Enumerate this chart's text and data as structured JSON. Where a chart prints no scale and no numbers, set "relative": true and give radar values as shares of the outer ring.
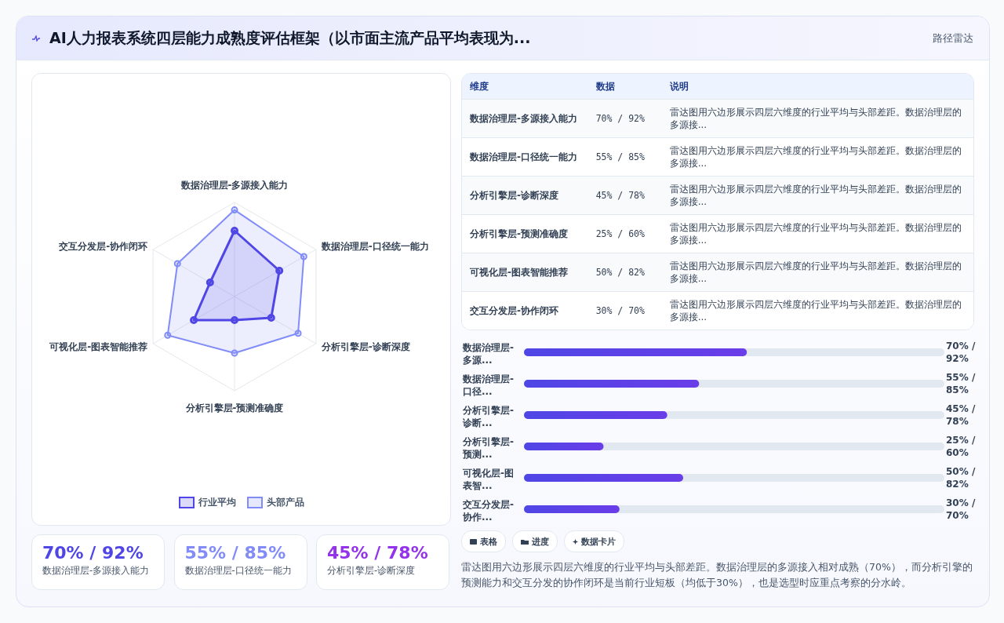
{
  "chart_data": [
    {
      "type": "other",
      "title": "AI人力报表系统四层能力成熟度评估框架（以市面主流产品平均表现为...",
      "subtitle": "路径雷达"
    },
    {
      "type": "radar",
      "relative": true,
      "categories": [
        "数据治理层-多源接入能力",
        "数据治理层-口径统一能力",
        "分析引擎层-诊断深度",
        "分析引擎层-预测准确度",
        "可视化层-图表智能推荐",
        "交互分发层-协作闭环"
      ],
      "series": [
        {
          "name": "行业平均",
          "color": "#4f46e5",
          "values": [
            0.7,
            0.55,
            0.45,
            0.25,
            0.5,
            0.3
          ]
        },
        {
          "name": "头部产品",
          "color": "#818cf8",
          "values": [
            0.92,
            0.85,
            0.78,
            0.6,
            0.82,
            0.7
          ]
        }
      ],
      "grid": true,
      "legend": "bottom",
      "marker": "circle"
    },
    {
      "type": "other",
      "annotations": [
        "维度",
        "数据",
        "说明",
        "数据治理层-多源接入能力",
        "70% / 92%",
        "雷达图用六边形展示四层六维度的行业平均与头部差距。数据治理层的多源接...",
        "数据治理层-口径统一能力",
        "55% / 85%",
        "雷达图用六边形展示四层六维度的行业平均与头部差距。数据治理层的多源接...",
        "分析引擎层-诊断深度",
        "45% / 78%",
        "雷达图用六边形展示四层六维度的行业平均与头部差距。数据治理层的多源接...",
        "分析引擎层-预测准确度",
        "25% / 60%",
        "雷达图用六边形展示四层六维度的行业平均与头部差距。数据治理层的多源接...",
        "可视化层-图表智能推荐",
        "50% / 82%",
        "雷达图用六边形展示四层六维度的行业平均与头部差距。数据治理层的多源接...",
        "交互分发层-协作闭环",
        "30% / 70%",
        "雷达图用六边形展示四层六维度的行业平均与头部差距。数据治理层的多源接..."
      ]
    },
    {
      "type": "bar",
      "orientation": "horizontal",
      "categories": [
        "数据治理层-多源...",
        "数据治理层-口径...",
        "分析引擎层-诊断...",
        "分析引擎层-预测...",
        "可视化层-图表智...",
        "交互分发层-协作..."
      ],
      "values": [
        70,
        55,
        45,
        25,
        50,
        30
      ],
      "color": "#6a3de8",
      "value_labels": [
        "70% / 92%",
        "55% / 85%",
        "45% / 78%",
        "25% / 60%",
        "50% / 82%",
        "30% / 70%"
      ]
    },
    {
      "type": "other",
      "categories": [
        "数据治理层-多源接入能力",
        "数据治理层-口径统一能力",
        "分析引擎层-诊断深度"
      ],
      "value_labels": [
        "70% / 92%",
        "55% / 85%",
        "45% / 78%"
      ],
      "annotations": [
        "表格",
        "进度",
        "数据卡片",
        "雷达图用六边形展示四层六维度的行业平均与头部差距。数据治理层的多源接入相对成熟（70%），而分析引擎的预测能力和交互分发的协作闭环是当前行业短板（均低于30%），也是选型时应重点考察的分水岭。"
      ]
    }
  ]
}
